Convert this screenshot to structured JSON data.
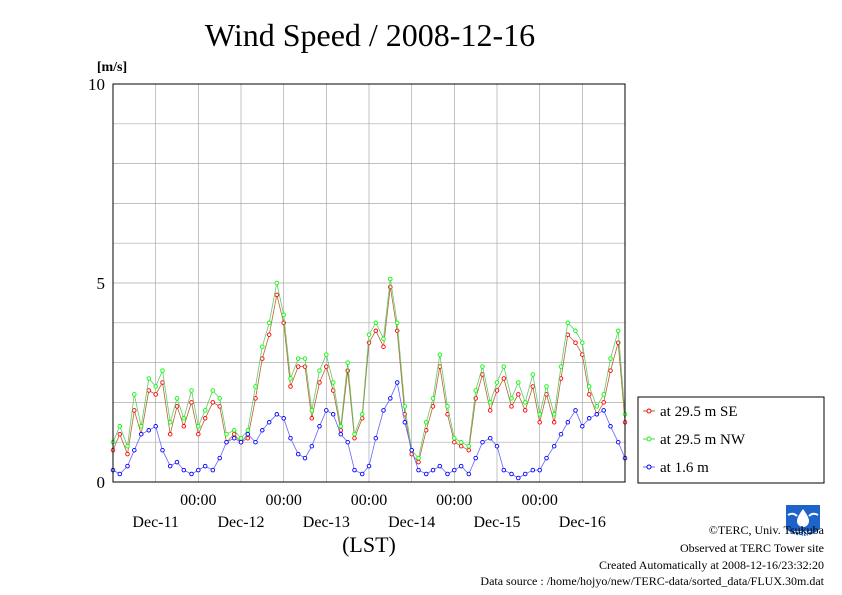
{
  "chart_data": {
    "type": "line",
    "title": "Wind Speed / 2008-12-16",
    "ylabel": "[m/s]",
    "xlabel": "(LST)",
    "ylim": [
      0,
      10
    ],
    "y_ticks": [
      0,
      5,
      10
    ],
    "x_range_days": [
      0,
      6
    ],
    "x_ticks": [
      {
        "day": 1,
        "time": "00:00",
        "date": "Dec-12"
      },
      {
        "day": 2,
        "time": "00:00",
        "date": "Dec-13"
      },
      {
        "day": 3,
        "time": "00:00",
        "date": "Dec-14"
      },
      {
        "day": 4,
        "time": "00:00",
        "date": "Dec-15"
      },
      {
        "day": 5,
        "time": "00:00",
        "date": "Dec-16"
      }
    ],
    "date_labels": [
      {
        "day": 0.5,
        "label": "Dec-11"
      },
      {
        "day": 1.5,
        "label": "Dec-12"
      },
      {
        "day": 2.5,
        "label": "Dec-13"
      },
      {
        "day": 3.5,
        "label": "Dec-14"
      },
      {
        "day": 4.5,
        "label": "Dec-15"
      },
      {
        "day": 5.5,
        "label": "Dec-16"
      }
    ],
    "grid": true,
    "legend_position": "right",
    "series": [
      {
        "name": "at 29.5 m SE",
        "color": "#ff0000",
        "line_color": "#b46432",
        "x": [
          0.0,
          0.08,
          0.17,
          0.25,
          0.33,
          0.42,
          0.5,
          0.58,
          0.67,
          0.75,
          0.83,
          0.92,
          1.0,
          1.08,
          1.17,
          1.25,
          1.33,
          1.42,
          1.5,
          1.58,
          1.67,
          1.75,
          1.83,
          1.92,
          2.0,
          2.08,
          2.17,
          2.25,
          2.33,
          2.42,
          2.5,
          2.58,
          2.67,
          2.75,
          2.83,
          2.92,
          3.0,
          3.08,
          3.17,
          3.25,
          3.33,
          3.42,
          3.5,
          3.58,
          3.67,
          3.75,
          3.83,
          3.92,
          4.0,
          4.08,
          4.17,
          4.25,
          4.33,
          4.42,
          4.5,
          4.58,
          4.67,
          4.75,
          4.83,
          4.92,
          5.0,
          5.08,
          5.17,
          5.25,
          5.33,
          5.42,
          5.5,
          5.58,
          5.67,
          5.75,
          5.83,
          5.92,
          6.0
        ],
        "y": [
          0.8,
          1.2,
          0.7,
          1.8,
          1.2,
          2.3,
          2.2,
          2.5,
          1.2,
          1.9,
          1.4,
          2.0,
          1.2,
          1.6,
          2.0,
          1.9,
          1.0,
          1.2,
          1.0,
          1.1,
          2.1,
          3.1,
          3.7,
          4.7,
          4.0,
          2.4,
          2.9,
          2.9,
          1.6,
          2.5,
          2.9,
          2.3,
          1.3,
          2.8,
          1.1,
          1.6,
          3.5,
          3.8,
          3.4,
          4.9,
          3.8,
          1.7,
          0.7,
          0.5,
          1.3,
          1.9,
          2.9,
          1.7,
          1.0,
          0.9,
          0.8,
          2.1,
          2.7,
          1.8,
          2.3,
          2.6,
          1.9,
          2.2,
          1.8,
          2.4,
          1.5,
          2.2,
          1.5,
          2.6,
          3.7,
          3.5,
          3.2,
          2.2,
          1.7,
          2.0,
          2.8,
          3.5,
          1.5
        ]
      },
      {
        "name": "at 29.5 m NW",
        "color": "#00ff00",
        "line_color": "#64c864",
        "x": [
          0.0,
          0.08,
          0.17,
          0.25,
          0.33,
          0.42,
          0.5,
          0.58,
          0.67,
          0.75,
          0.83,
          0.92,
          1.0,
          1.08,
          1.17,
          1.25,
          1.33,
          1.42,
          1.5,
          1.58,
          1.67,
          1.75,
          1.83,
          1.92,
          2.0,
          2.08,
          2.17,
          2.25,
          2.33,
          2.42,
          2.5,
          2.58,
          2.67,
          2.75,
          2.83,
          2.92,
          3.0,
          3.08,
          3.17,
          3.25,
          3.33,
          3.42,
          3.5,
          3.58,
          3.67,
          3.75,
          3.83,
          3.92,
          4.0,
          4.08,
          4.17,
          4.25,
          4.33,
          4.42,
          4.5,
          4.58,
          4.67,
          4.75,
          4.83,
          4.92,
          5.0,
          5.08,
          5.17,
          5.25,
          5.33,
          5.42,
          5.5,
          5.58,
          5.67,
          5.75,
          5.83,
          5.92,
          6.0
        ],
        "y": [
          1.0,
          1.4,
          0.9,
          2.2,
          1.4,
          2.6,
          2.4,
          2.8,
          1.5,
          2.1,
          1.6,
          2.3,
          1.4,
          1.8,
          2.3,
          2.1,
          1.2,
          1.3,
          1.1,
          1.3,
          2.4,
          3.4,
          4.0,
          5.0,
          4.2,
          2.6,
          3.1,
          3.1,
          1.8,
          2.8,
          3.2,
          2.5,
          1.4,
          3.0,
          1.2,
          1.7,
          3.7,
          4.0,
          3.6,
          5.1,
          4.0,
          1.9,
          0.8,
          0.6,
          1.5,
          2.1,
          3.2,
          1.9,
          1.1,
          1.0,
          0.9,
          2.3,
          2.9,
          2.0,
          2.5,
          2.9,
          2.1,
          2.5,
          2.0,
          2.7,
          1.7,
          2.4,
          1.7,
          2.9,
          4.0,
          3.8,
          3.5,
          2.4,
          1.9,
          2.2,
          3.1,
          3.8,
          1.7
        ]
      },
      {
        "name": "at 1.6 m",
        "color": "#0000ff",
        "line_color": "#6464ff",
        "x": [
          0.0,
          0.08,
          0.17,
          0.25,
          0.33,
          0.42,
          0.5,
          0.58,
          0.67,
          0.75,
          0.83,
          0.92,
          1.0,
          1.08,
          1.17,
          1.25,
          1.33,
          1.42,
          1.5,
          1.58,
          1.67,
          1.75,
          1.83,
          1.92,
          2.0,
          2.08,
          2.17,
          2.25,
          2.33,
          2.42,
          2.5,
          2.58,
          2.67,
          2.75,
          2.83,
          2.92,
          3.0,
          3.08,
          3.17,
          3.25,
          3.33,
          3.42,
          3.5,
          3.58,
          3.67,
          3.75,
          3.83,
          3.92,
          4.0,
          4.08,
          4.17,
          4.25,
          4.33,
          4.42,
          4.5,
          4.58,
          4.67,
          4.75,
          4.83,
          4.92,
          5.0,
          5.08,
          5.17,
          5.25,
          5.33,
          5.42,
          5.5,
          5.58,
          5.67,
          5.75,
          5.83,
          5.92,
          6.0
        ],
        "y": [
          0.3,
          0.2,
          0.4,
          0.8,
          1.2,
          1.3,
          1.4,
          0.8,
          0.4,
          0.5,
          0.3,
          0.2,
          0.3,
          0.4,
          0.3,
          0.6,
          1.0,
          1.1,
          1.0,
          1.2,
          1.0,
          1.3,
          1.5,
          1.7,
          1.6,
          1.1,
          0.7,
          0.6,
          0.9,
          1.4,
          1.8,
          1.7,
          1.2,
          1.0,
          0.3,
          0.2,
          0.4,
          1.1,
          1.8,
          2.1,
          2.5,
          1.5,
          0.8,
          0.3,
          0.2,
          0.3,
          0.4,
          0.2,
          0.3,
          0.4,
          0.2,
          0.6,
          1.0,
          1.1,
          0.9,
          0.3,
          0.2,
          0.1,
          0.2,
          0.3,
          0.3,
          0.6,
          0.9,
          1.2,
          1.5,
          1.8,
          1.4,
          1.6,
          1.7,
          1.8,
          1.4,
          1.0,
          0.6
        ]
      }
    ]
  },
  "credits": {
    "copyright": "©TERC, Univ. Tsukuba",
    "site": "Observed at TERC Tower site",
    "created": "Created Automatically at 2008-12-16/23:32:20",
    "source": "Data source : /home/hojyo/new/TERC-data/sorted_data/FLUX.30m.dat",
    "logo_text": "TERC"
  }
}
